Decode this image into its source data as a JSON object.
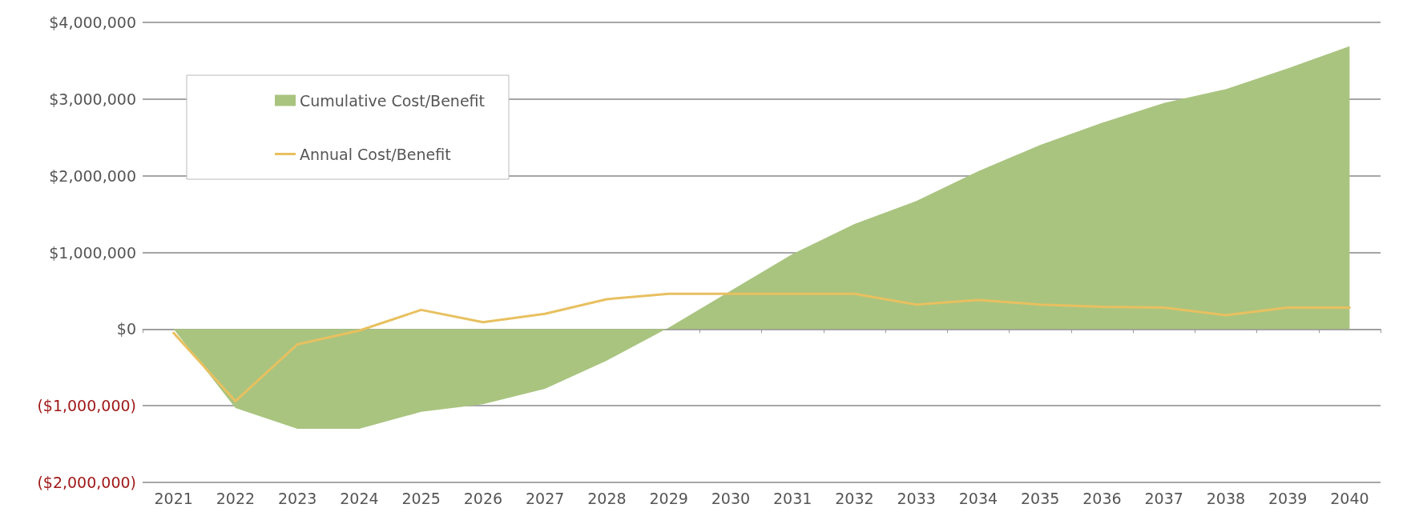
{
  "chart_data": {
    "type": "area",
    "categories": [
      "2021",
      "2022",
      "2023",
      "2024",
      "2025",
      "2026",
      "2027",
      "2028",
      "2029",
      "2030",
      "2031",
      "2032",
      "2033",
      "2034",
      "2035",
      "2036",
      "2037",
      "2038",
      "2039",
      "2040"
    ],
    "series": [
      {
        "name": "Cumulative Cost/Benefit",
        "color": "#a9c47f",
        "values": [
          0,
          -1030000,
          -1300000,
          -1300000,
          -1080000,
          -980000,
          -780000,
          -410000,
          20000,
          500000,
          980000,
          1370000,
          1670000,
          2060000,
          2400000,
          2690000,
          2950000,
          3130000,
          3400000,
          3690000
        ]
      },
      {
        "name": "Annual Cost/Benefit",
        "type": "line",
        "color": "#e8c060",
        "values": [
          -50000,
          -940000,
          -200000,
          -20000,
          250000,
          90000,
          200000,
          390000,
          460000,
          460000,
          460000,
          460000,
          320000,
          380000,
          320000,
          290000,
          280000,
          180000,
          280000,
          280000
        ]
      }
    ],
    "ylim": [
      -2000000,
      4000000
    ],
    "yticks": [
      {
        "value": -2000000,
        "label": "($2,000,000)"
      },
      {
        "value": -1000000,
        "label": "($1,000,000)"
      },
      {
        "value": 0,
        "label": "$0"
      },
      {
        "value": 1000000,
        "label": "$1,000,000"
      },
      {
        "value": 2000000,
        "label": "$2,000,000"
      },
      {
        "value": 3000000,
        "label": "$3,000,000"
      },
      {
        "value": 4000000,
        "label": "$4,000,000"
      }
    ],
    "grid": "y",
    "legend": "top left",
    "marker": "none",
    "line_style": "solid"
  }
}
